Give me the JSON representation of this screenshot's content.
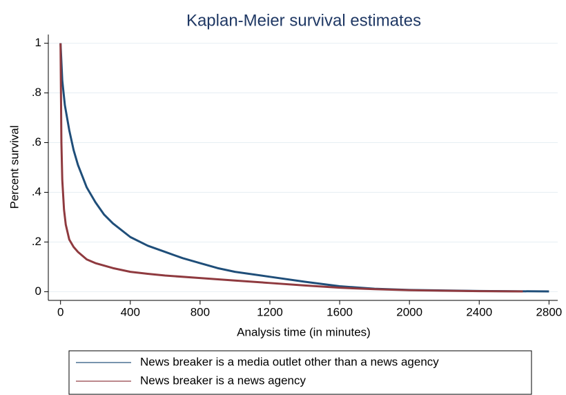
{
  "chart_data": {
    "type": "line",
    "title": "Kaplan-Meier survival estimates",
    "x_label": "Analysis time (in minutes)",
    "y_label": "Percent survival",
    "xlim": [
      -70,
      2850
    ],
    "ylim": [
      -0.035,
      1.035
    ],
    "xticks": [
      0,
      400,
      800,
      1200,
      1600,
      2000,
      2400,
      2800
    ],
    "yticks": [
      0,
      {
        "value": 0.2,
        "label": ".2"
      },
      {
        "value": 0.4,
        "label": ".4"
      },
      {
        "value": 0.6,
        "label": ".6"
      },
      {
        "value": 0.8,
        "label": ".8"
      },
      1
    ],
    "grid": true,
    "legend": "bottom",
    "series": [
      {
        "name": "News breaker is a media outlet other than a news agency",
        "color": "#1f4e79",
        "x": [
          0,
          10,
          25,
          50,
          75,
          100,
          150,
          200,
          250,
          300,
          400,
          500,
          600,
          700,
          800,
          900,
          1000,
          1200,
          1400,
          1600,
          1800,
          2000,
          2400,
          2800
        ],
        "values": [
          1,
          0.85,
          0.75,
          0.65,
          0.57,
          0.51,
          0.42,
          0.36,
          0.31,
          0.275,
          0.22,
          0.185,
          0.16,
          0.135,
          0.115,
          0.095,
          0.08,
          0.06,
          0.04,
          0.022,
          0.012,
          0.007,
          0.003,
          0.001
        ]
      },
      {
        "name": "News breaker is a news agency",
        "color": "#8f3a3f",
        "x": [
          0,
          5,
          10,
          20,
          30,
          50,
          75,
          100,
          150,
          200,
          300,
          400,
          500,
          600,
          800,
          1000,
          1200,
          1400,
          1600,
          1800,
          2000,
          2400,
          2650
        ],
        "values": [
          1,
          0.6,
          0.45,
          0.33,
          0.27,
          0.21,
          0.18,
          0.16,
          0.13,
          0.115,
          0.095,
          0.08,
          0.072,
          0.065,
          0.055,
          0.045,
          0.035,
          0.025,
          0.016,
          0.01,
          0.006,
          0.002,
          0.001
        ]
      }
    ]
  }
}
